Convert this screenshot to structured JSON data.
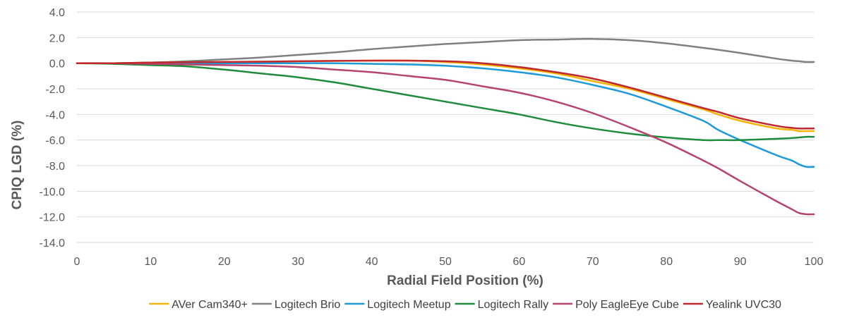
{
  "chart_data": {
    "type": "line",
    "xlabel": "Radial Field Position (%)",
    "ylabel": "CPIQ LGD (%)",
    "xlim": [
      0,
      100
    ],
    "ylim": [
      -14,
      4
    ],
    "x_ticks": [
      0,
      10,
      20,
      30,
      40,
      50,
      60,
      70,
      80,
      90,
      100
    ],
    "y_ticks": [
      4,
      2,
      0,
      -2,
      -4,
      -6,
      -8,
      -10,
      -12,
      -14
    ],
    "y_tick_labels": [
      "4.0",
      "2.0",
      "0.0",
      "-2.0",
      "-4.0",
      "-6.0",
      "-8.0",
      "-10.0",
      "-12.0",
      "-14.0"
    ],
    "grid": "horizontal",
    "legend_position": "bottom",
    "x": [
      0,
      5,
      10,
      15,
      20,
      25,
      30,
      35,
      40,
      45,
      50,
      55,
      60,
      65,
      70,
      75,
      80,
      85,
      87,
      90,
      95,
      97,
      98,
      99,
      100
    ],
    "series": [
      {
        "name": "AVer Cam340+",
        "color": "#F4B400",
        "values": [
          0,
          0,
          0.05,
          0.08,
          0.1,
          0.12,
          0.15,
          0.18,
          0.2,
          0.2,
          0.1,
          -0.1,
          -0.4,
          -0.8,
          -1.4,
          -2.0,
          -2.8,
          -3.6,
          -4.0,
          -4.5,
          -5.1,
          -5.2,
          -5.3,
          -5.3,
          -5.3
        ]
      },
      {
        "name": "Logitech Brio",
        "color": "#808080",
        "values": [
          0,
          0,
          0.05,
          0.15,
          0.3,
          0.45,
          0.65,
          0.85,
          1.1,
          1.3,
          1.5,
          1.65,
          1.8,
          1.85,
          1.9,
          1.8,
          1.55,
          1.2,
          1.05,
          0.8,
          0.35,
          0.2,
          0.15,
          0.1,
          0.1
        ]
      },
      {
        "name": "Logitech Meetup",
        "color": "#1E9BD7",
        "values": [
          0,
          0,
          0,
          0,
          0,
          0,
          0,
          0,
          -0.05,
          -0.1,
          -0.2,
          -0.4,
          -0.7,
          -1.1,
          -1.7,
          -2.4,
          -3.4,
          -4.5,
          -5.2,
          -6.0,
          -7.2,
          -7.6,
          -7.9,
          -8.1,
          -8.1
        ]
      },
      {
        "name": "Logitech Rally",
        "color": "#1E8C3C",
        "values": [
          0,
          -0.05,
          -0.15,
          -0.25,
          -0.5,
          -0.8,
          -1.1,
          -1.5,
          -2.0,
          -2.5,
          -3.0,
          -3.5,
          -4.0,
          -4.6,
          -5.1,
          -5.5,
          -5.8,
          -6.0,
          -6.0,
          -6.0,
          -5.9,
          -5.85,
          -5.8,
          -5.75,
          -5.75
        ]
      },
      {
        "name": "Poly EagleEye Cube",
        "color": "#B5456E",
        "values": [
          0,
          0,
          -0.05,
          -0.1,
          -0.15,
          -0.2,
          -0.3,
          -0.5,
          -0.7,
          -1.0,
          -1.3,
          -1.8,
          -2.3,
          -3.0,
          -3.9,
          -5.0,
          -6.2,
          -7.6,
          -8.2,
          -9.2,
          -10.8,
          -11.4,
          -11.7,
          -11.8,
          -11.8
        ]
      },
      {
        "name": "Yealink UVC30",
        "color": "#C0282D",
        "values": [
          0,
          0,
          0.05,
          0.08,
          0.1,
          0.12,
          0.15,
          0.18,
          0.2,
          0.2,
          0.15,
          0,
          -0.3,
          -0.7,
          -1.2,
          -1.9,
          -2.7,
          -3.5,
          -3.8,
          -4.3,
          -4.9,
          -5.05,
          -5.1,
          -5.1,
          -5.1
        ]
      }
    ]
  }
}
